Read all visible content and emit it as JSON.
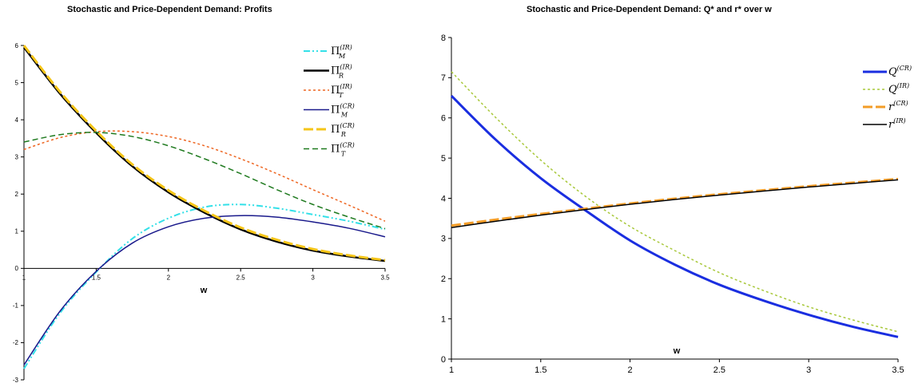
{
  "chart_data": [
    {
      "type": "line",
      "title": "Stochastic and Price-Dependent Demand: Profits",
      "xlabel": "w",
      "ylabel": "",
      "xlim": [
        1,
        3.5
      ],
      "ylim": [
        -3,
        6
      ],
      "x_ticks": [
        "1",
        "1.5",
        "2",
        "2.5",
        "3",
        "3.5"
      ],
      "y_ticks": [
        "-3",
        "-2",
        "-1",
        "0",
        "1",
        "2",
        "3",
        "4",
        "5",
        "6"
      ],
      "legend_position": "top-right",
      "x": [
        1,
        1.25,
        1.5,
        1.75,
        2,
        2.25,
        2.5,
        2.75,
        3,
        3.25,
        3.5
      ],
      "series": [
        {
          "name": "Π_M^(IR)",
          "base": "Π",
          "sub": "M",
          "sup": "(IR)",
          "color": "#33e0e8",
          "dash": "8,3,2,3,2,3",
          "values": [
            -2.7,
            -1.2,
            -0.1,
            0.8,
            1.35,
            1.65,
            1.72,
            1.62,
            1.45,
            1.27,
            1.05
          ]
        },
        {
          "name": "Π_R^(IR)",
          "base": "Π",
          "sub": "R",
          "sup": "(IR)",
          "color": "#000000",
          "dash": "",
          "values": [
            5.95,
            4.7,
            3.65,
            2.75,
            2.05,
            1.5,
            1.05,
            0.72,
            0.48,
            0.32,
            0.2
          ]
        },
        {
          "name": "Π_T^(IR)",
          "base": "Π",
          "sub": "T",
          "sup": "(IR)",
          "color": "#ee6622",
          "dash": "3,3",
          "values": [
            3.2,
            3.52,
            3.68,
            3.68,
            3.55,
            3.3,
            2.95,
            2.55,
            2.12,
            1.7,
            1.27
          ]
        },
        {
          "name": "Π_M^(CR)",
          "base": "Π",
          "sub": "M",
          "sup": "(CR)",
          "color": "#1a1a8c",
          "dash": "",
          "values": [
            -2.6,
            -1.15,
            -0.08,
            0.68,
            1.12,
            1.35,
            1.42,
            1.38,
            1.25,
            1.08,
            0.85
          ]
        },
        {
          "name": "Π_R^(CR)",
          "base": "Π",
          "sub": "R",
          "sup": "(CR)",
          "color": "#f5c518",
          "dash": "12,4",
          "values": [
            6.0,
            4.75,
            3.7,
            2.8,
            2.1,
            1.55,
            1.1,
            0.77,
            0.52,
            0.35,
            0.22
          ]
        },
        {
          "name": "Π_T^(CR)",
          "base": "Π",
          "sub": "T",
          "sup": "(CR)",
          "color": "#1f7a1f",
          "dash": "7,4",
          "values": [
            3.4,
            3.6,
            3.66,
            3.55,
            3.3,
            2.95,
            2.55,
            2.12,
            1.72,
            1.38,
            1.07
          ]
        }
      ]
    },
    {
      "type": "line",
      "title": "Stochastic and Price-Dependent Demand: Q* and r* over w",
      "xlabel": "w",
      "ylabel": "",
      "xlim": [
        1,
        3.5
      ],
      "ylim": [
        0,
        8
      ],
      "x_ticks": [
        "1",
        "1.5",
        "2",
        "2.5",
        "3",
        "3.5"
      ],
      "y_ticks": [
        "0",
        "1",
        "2",
        "3",
        "4",
        "5",
        "6",
        "7",
        "8"
      ],
      "legend_position": "top-right",
      "x": [
        1,
        1.25,
        1.5,
        1.75,
        2,
        2.25,
        2.5,
        2.75,
        3,
        3.25,
        3.5
      ],
      "series": [
        {
          "name": "Q^(CR)",
          "base": "Q",
          "sub": "",
          "sup": "(CR)",
          "color": "#1a2ee0",
          "dash": "",
          "values": [
            6.55,
            5.45,
            4.5,
            3.7,
            2.95,
            2.35,
            1.85,
            1.45,
            1.1,
            0.8,
            0.55
          ]
        },
        {
          "name": "Q^(IR)",
          "base": "Q",
          "sub": "",
          "sup": "(IR)",
          "color": "#a8c83a",
          "dash": "3,3",
          "values": [
            7.15,
            6.0,
            4.95,
            4.05,
            3.3,
            2.7,
            2.15,
            1.7,
            1.3,
            0.97,
            0.68
          ]
        },
        {
          "name": "r^(CR)",
          "base": "r",
          "sub": "",
          "sup": "(CR)",
          "color": "#f39c27",
          "dash": "12,4",
          "values": [
            3.32,
            3.47,
            3.61,
            3.74,
            3.87,
            3.99,
            4.1,
            4.2,
            4.3,
            4.39,
            4.48
          ]
        },
        {
          "name": "r^(IR)",
          "base": "r",
          "sub": "",
          "sup": "(IR)",
          "color": "#000000",
          "dash": "",
          "values": [
            3.27,
            3.43,
            3.58,
            3.72,
            3.85,
            3.97,
            4.08,
            4.18,
            4.28,
            4.37,
            4.46
          ]
        }
      ]
    }
  ]
}
